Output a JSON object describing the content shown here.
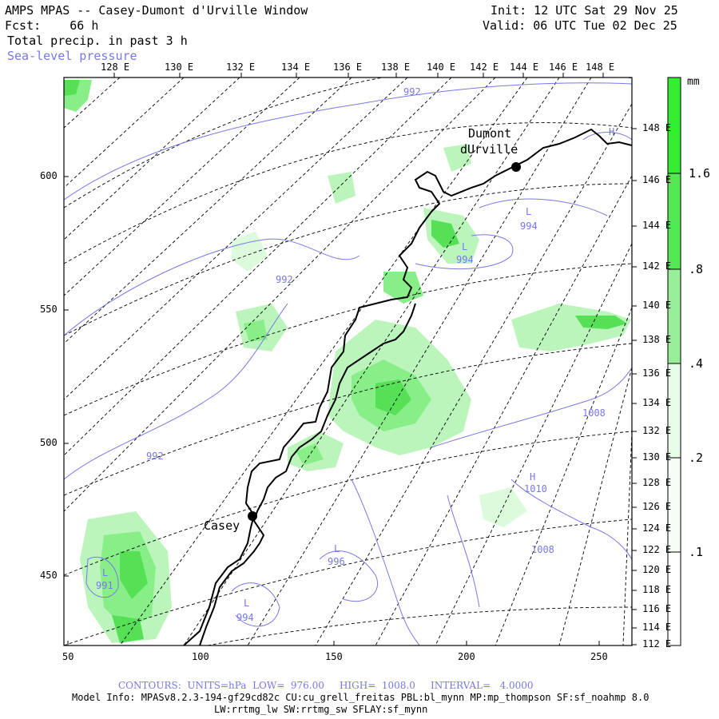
{
  "header": {
    "title": "AMPS MPAS -- Casey-Dumont d'Urville Window",
    "fcst": "Fcst:    66 h",
    "field": "Total precip. in past 3 h",
    "overlay": "Sea-level pressure",
    "init": "Init: 12 UTC Sat 29 Nov 25",
    "valid": "Valid: 06 UTC Tue 02 Dec 25"
  },
  "map": {
    "top_lon_labels": [
      "128 E",
      "130 E",
      "132 E",
      "134 E",
      "136 E",
      "138 E",
      "140 E",
      "142 E",
      "144 E",
      "146 E",
      "148 E"
    ],
    "right_lon_labels": [
      "148 E",
      "146 E",
      "144 E",
      "142 E",
      "140 E",
      "138 E",
      "136 E",
      "134 E",
      "132 E",
      "130 E",
      "128 E",
      "126 E",
      "124 E",
      "122 E",
      "120 E",
      "118 E",
      "116 E",
      "114 E",
      "112 E"
    ],
    "y_axis_labels": [
      "600",
      "550",
      "500",
      "450"
    ],
    "x_axis_labels": [
      "50",
      "100",
      "150",
      "200",
      "250"
    ],
    "stations": [
      {
        "name": "Casey"
      },
      {
        "name_line1": "Dumont",
        "name_line2": "dUrville"
      }
    ],
    "pressure_labels": [
      "992",
      "992",
      "992",
      "994",
      "994",
      "1008",
      "1010",
      "1008",
      "996",
      "994",
      "991"
    ],
    "pressure_centers": [
      "L",
      "L",
      "H",
      "L",
      "L",
      "L",
      "H"
    ]
  },
  "colorbar": {
    "unit": "mm",
    "labels": [
      "1.6",
      ".8",
      ".4",
      ".2",
      ".1"
    ],
    "colors": [
      "#33ee33",
      "#88ee88",
      "#bbf5bb",
      "#dcfadc",
      "#eefcee"
    ]
  },
  "footer": {
    "contours": "CONTOURS:  UNITS=hPa  LOW=  976.00     HIGH=  1008.0     INTERVAL=   4.0000",
    "model_info": "Model Info: MPASv8.2.3-194-gf29cd82c CU:cu_grell_freitas PBL:bl_mynn MP:mp_thompson SF:sf_noahmp 8.0",
    "model_info2": "LW:rrtmg_lw SW:rrtmg_sw SFLAY:sf_mynn"
  }
}
